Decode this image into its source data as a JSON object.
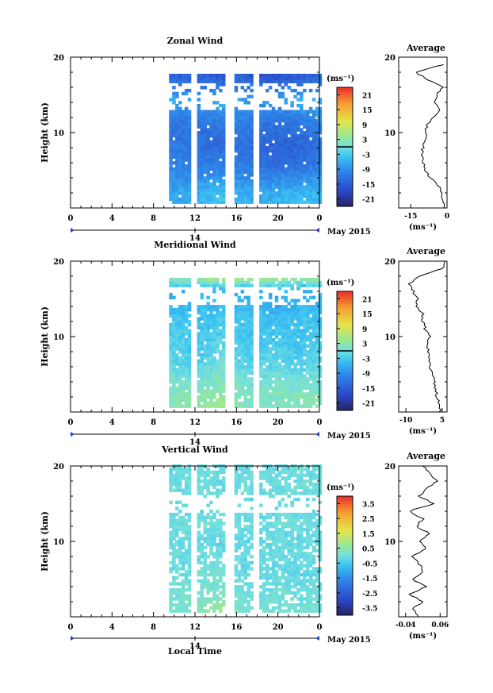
{
  "chart_data": [
    {
      "type": "heatmap",
      "title": "Zonal Wind",
      "ylabel": "Height (km)",
      "xlabel": "",
      "ylim": [
        0,
        20
      ],
      "xlim": [
        0,
        24
      ],
      "xticks": [
        "0",
        "4",
        "8",
        "12",
        "16",
        "20",
        "0"
      ],
      "yticks": [
        "10",
        "20"
      ],
      "date_day": "14",
      "date_label": "May 2015",
      "colorbar": {
        "unit": "(ms⁻¹)",
        "range": [
          -24,
          24
        ],
        "ticks": [
          "21",
          "15",
          "9",
          "3",
          "-3",
          "-9",
          "-15",
          "-21"
        ],
        "zero_line": 0
      },
      "field": {
        "time_start": 9.5,
        "time_end": 24,
        "height_top": 17.5,
        "data_gaps": [
          [
            11.8,
            12.2
          ],
          [
            15.2,
            15.6
          ],
          [
            17.8,
            18.1
          ]
        ],
        "profile_time": [
          9.5,
          12,
          14.5,
          16,
          17.5,
          20,
          22,
          24
        ],
        "profile_height": [
          0,
          2,
          4,
          6,
          8,
          10,
          12,
          14,
          16,
          17.5
        ],
        "values": [
          [
            -6,
            -5,
            -3,
            -4,
            -6,
            -4,
            -3,
            -4
          ],
          [
            -7,
            -6,
            -4,
            -6,
            -7,
            -6,
            -5,
            -5
          ],
          [
            -9,
            -9,
            -8,
            -9,
            -10,
            -10,
            -9,
            -8
          ],
          [
            -10,
            -11,
            -12,
            -11,
            -12,
            -13,
            -13,
            -11
          ],
          [
            -11,
            -12,
            -13,
            -12,
            -13,
            -14,
            -14,
            -12
          ],
          [
            -12,
            -12,
            -12,
            -11,
            -12,
            -13,
            -12,
            -11
          ],
          [
            -10,
            -11,
            -10,
            -9,
            -11,
            -11,
            -10,
            -9
          ],
          [
            -6,
            -7,
            -5,
            -6,
            -8,
            -7,
            -6,
            -5
          ],
          [
            -10,
            -12,
            -12,
            -11,
            -12,
            -13,
            -12,
            -11
          ],
          [
            -14,
            -15,
            -16,
            -14,
            -16,
            -17,
            -15,
            -14
          ]
        ]
      },
      "average_panel": {
        "title": "Average",
        "xlabel": "(ms⁻¹)",
        "xlim": [
          -20,
          0
        ],
        "xticks": [
          "-15",
          "0"
        ],
        "height": [
          0,
          1,
          2,
          3,
          4,
          5,
          6,
          7,
          8,
          9,
          10,
          11,
          12,
          13,
          14,
          15,
          16,
          17,
          18,
          19
        ],
        "value": [
          -1,
          -1.5,
          -2,
          -4,
          -7,
          -9,
          -10,
          -10.5,
          -10,
          -9,
          -9,
          -8,
          -6,
          -3,
          -5,
          -4,
          -2,
          -8,
          -13,
          -2
        ]
      }
    },
    {
      "type": "heatmap",
      "title": "Meridional Wind",
      "ylabel": "Height (km)",
      "xlabel": "",
      "ylim": [
        0,
        20
      ],
      "xlim": [
        0,
        24
      ],
      "xticks": [
        "0",
        "4",
        "8",
        "12",
        "16",
        "20",
        "0"
      ],
      "yticks": [
        "10",
        "20"
      ],
      "date_day": "14",
      "date_label": "May 2015",
      "colorbar": {
        "unit": "(ms⁻¹)",
        "range": [
          -24,
          24
        ],
        "ticks": [
          "21",
          "15",
          "9",
          "3",
          "-3",
          "-9",
          "-15",
          "-21"
        ],
        "zero_line": 0
      },
      "field": {
        "time_start": 9.5,
        "time_end": 24,
        "height_top": 17.5,
        "data_gaps": [
          [
            11.8,
            12.2
          ],
          [
            15.2,
            15.6
          ],
          [
            17.8,
            18.1
          ]
        ],
        "profile_time": [
          9.5,
          12,
          14.5,
          16,
          17.5,
          20,
          22,
          24
        ],
        "profile_height": [
          0,
          2,
          4,
          6,
          8,
          10,
          12,
          14,
          16,
          17.5
        ],
        "values": [
          [
            3,
            4,
            6,
            3,
            2,
            2,
            3,
            3
          ],
          [
            2,
            3,
            4,
            2,
            1,
            2,
            2,
            2
          ],
          [
            1,
            0,
            2,
            1,
            0,
            1,
            0,
            1
          ],
          [
            -1,
            -2,
            1,
            -1,
            -2,
            -1,
            -2,
            -1
          ],
          [
            -2,
            -3,
            -1,
            -2,
            -3,
            -2,
            -3,
            -2
          ],
          [
            -2,
            -3,
            -2,
            -3,
            -4,
            -3,
            -4,
            -3
          ],
          [
            -3,
            -4,
            -3,
            -3,
            -4,
            -4,
            -3,
            -3
          ],
          [
            -5,
            -4,
            -5,
            -4,
            -5,
            -6,
            -5,
            -5
          ],
          [
            -6,
            -5,
            -6,
            -5,
            -6,
            -5,
            -6,
            -5
          ],
          [
            2,
            3,
            6,
            4,
            5,
            4,
            3,
            4
          ]
        ]
      },
      "average_panel": {
        "title": "Average",
        "xlabel": "(ms⁻¹)",
        "xlim": [
          -13,
          7
        ],
        "xticks": [
          "-10",
          "5"
        ],
        "height": [
          0,
          1,
          2,
          3,
          4,
          5,
          6,
          7,
          8,
          9,
          10,
          11,
          12,
          13,
          14,
          15,
          16,
          17,
          18,
          19,
          20
        ],
        "value": [
          4,
          4,
          3,
          2,
          2,
          1,
          0,
          0,
          -1,
          -1,
          0,
          -2,
          -3,
          -3,
          -6,
          -5,
          -7,
          -9,
          -4,
          5,
          6
        ]
      }
    },
    {
      "type": "heatmap",
      "title": "Vertical Wind",
      "ylabel": "Height (km)",
      "xlabel": "Local Time",
      "ylim": [
        0,
        20
      ],
      "xlim": [
        0,
        24
      ],
      "xticks": [
        "0",
        "4",
        "8",
        "12",
        "16",
        "20",
        "0"
      ],
      "yticks": [
        "10",
        "20"
      ],
      "date_day": "14",
      "date_label": "May 2015",
      "colorbar": {
        "unit": "(ms⁻¹)",
        "range": [
          -4,
          4
        ],
        "ticks": [
          "3.5",
          "2.5",
          "1.5",
          "0.5",
          "-0.5",
          "-1.5",
          "-2.5",
          "-3.5"
        ],
        "zero_line": null
      },
      "field": {
        "time_start": 9.5,
        "time_end": 24,
        "height_top": 20,
        "data_gaps": [
          [
            11.8,
            12.2
          ],
          [
            15.2,
            15.6
          ],
          [
            17.8,
            18.1
          ]
        ],
        "profile_time": [
          9.5,
          12,
          14.5,
          16,
          17.5,
          20,
          22,
          24
        ],
        "profile_height": [
          0,
          2,
          4,
          6,
          8,
          10,
          12,
          14,
          16,
          20
        ],
        "values": [
          [
            0.2,
            0.3,
            1.2,
            0.2,
            0.1,
            0.2,
            0.1,
            0.2
          ],
          [
            0.1,
            0.2,
            0.5,
            0.1,
            0.0,
            0.1,
            0.0,
            0.1
          ],
          [
            0.0,
            0.1,
            0.2,
            0.0,
            -0.1,
            0.0,
            -0.1,
            0.0
          ],
          [
            -0.1,
            0.0,
            0.1,
            -0.1,
            -0.2,
            -0.1,
            -0.2,
            -0.1
          ],
          [
            0.0,
            -0.1,
            0.0,
            -0.1,
            -0.1,
            0.0,
            -0.1,
            0.0
          ],
          [
            -0.1,
            -0.1,
            -0.2,
            -0.1,
            -0.2,
            -0.1,
            -0.2,
            -0.1
          ],
          [
            0.0,
            0.0,
            0.1,
            0.0,
            -0.1,
            0.0,
            0.0,
            0.0
          ],
          [
            -0.1,
            -0.2,
            -0.1,
            -0.1,
            -0.2,
            -0.1,
            -0.1,
            -0.2
          ],
          [
            0.0,
            0.0,
            -0.1,
            0.0,
            -0.1,
            0.0,
            0.0,
            0.0
          ],
          [
            -0.1,
            0.0,
            -0.1,
            -0.1,
            0.0,
            -0.1,
            0.0,
            -0.1
          ]
        ]
      },
      "average_panel": {
        "title": "Average",
        "xlabel": "(ms⁻¹)",
        "xlim": [
          -0.06,
          0.08
        ],
        "xticks": [
          "-0.04",
          "0.06"
        ],
        "height": [
          0,
          1,
          2,
          3,
          4,
          5,
          6,
          7,
          8,
          9,
          10,
          11,
          12,
          13,
          14,
          15,
          16,
          17,
          18,
          19,
          20
        ],
        "value": [
          0.0,
          -0.02,
          0.01,
          -0.03,
          0.02,
          -0.02,
          0.01,
          0.0,
          -0.02,
          0.02,
          0.0,
          0.03,
          -0.01,
          0.01,
          -0.03,
          0.04,
          0.0,
          0.02,
          0.05,
          0.03,
          0.01
        ]
      }
    }
  ]
}
